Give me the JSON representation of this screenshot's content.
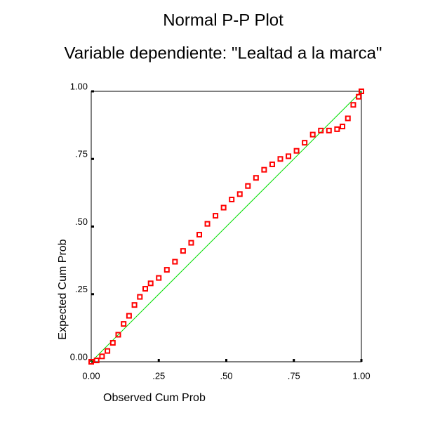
{
  "chart_data": {
    "type": "scatter",
    "title": "Normal P-P Plot",
    "subtitle": "Variable dependiente: \"Lealtad a la marca\"",
    "xlabel": "Observed Cum Prob",
    "ylabel": "Expected Cum Prob",
    "color": "#ff0000",
    "reference_color": "#00dd00",
    "x": [
      0,
      0.02,
      0.04,
      0.06,
      0.08,
      0.1,
      0.12,
      0.14,
      0.16,
      0.18,
      0.2,
      0.22,
      0.25,
      0.28,
      0.31,
      0.34,
      0.37,
      0.4,
      0.43,
      0.46,
      0.49,
      0.52,
      0.55,
      0.58,
      0.61,
      0.64,
      0.67,
      0.7,
      0.73,
      0.76,
      0.79,
      0.82,
      0.85,
      0.88,
      0.91,
      0.93,
      0.95,
      0.97,
      0.99,
      1
    ],
    "values": [
      0,
      0.005,
      0.02,
      0.04,
      0.07,
      0.1,
      0.14,
      0.17,
      0.21,
      0.24,
      0.27,
      0.29,
      0.31,
      0.34,
      0.37,
      0.41,
      0.44,
      0.47,
      0.51,
      0.54,
      0.57,
      0.6,
      0.62,
      0.65,
      0.68,
      0.71,
      0.73,
      0.75,
      0.76,
      0.78,
      0.81,
      0.84,
      0.855,
      0.855,
      0.86,
      0.87,
      0.9,
      0.95,
      0.98,
      1
    ],
    "xlim": [
      0,
      1
    ],
    "ylim": [
      0,
      1
    ],
    "xticks": [
      {
        "value": 0,
        "label": "0.00"
      },
      {
        "value": 0.25,
        "label": ".25"
      },
      {
        "value": 0.5,
        "label": ".50"
      },
      {
        "value": 0.75,
        "label": ".75"
      },
      {
        "value": 1,
        "label": "1.00"
      }
    ],
    "yticks": [
      {
        "value": 0,
        "label": "0.00"
      },
      {
        "value": 0.25,
        "label": ".25"
      },
      {
        "value": 0.5,
        "label": ".50"
      },
      {
        "value": 0.75,
        "label": ".75"
      },
      {
        "value": 1,
        "label": "1.00"
      }
    ]
  }
}
